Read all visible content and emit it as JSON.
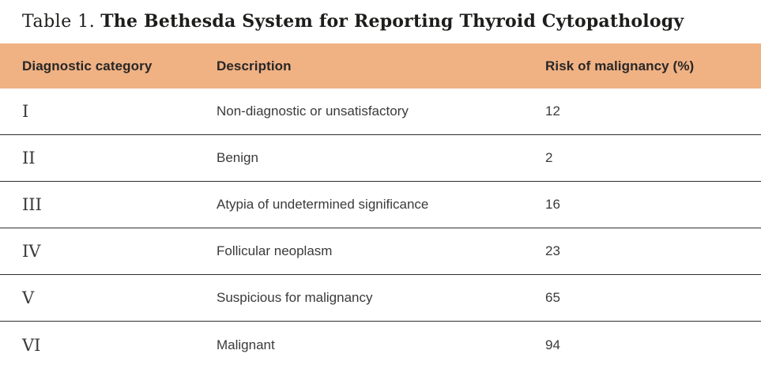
{
  "title": {
    "prefix": "Table 1.",
    "main": "The Bethesda System for Reporting Thyroid Cytopathology"
  },
  "table": {
    "headers": {
      "category": "Diagnostic category",
      "description": "Description",
      "risk": "Risk of malignancy (%)"
    },
    "rows": [
      {
        "category": "I",
        "description": "Non-diagnostic or unsatisfactory",
        "risk": "12"
      },
      {
        "category": "II",
        "description": "Benign",
        "risk": "2"
      },
      {
        "category": "III",
        "description": "Atypia of undetermined significance",
        "risk": "16"
      },
      {
        "category": "IV",
        "description": "Follicular neoplasm",
        "risk": "23"
      },
      {
        "category": "V",
        "description": "Suspicious for malignancy",
        "risk": "65"
      },
      {
        "category": "VI",
        "description": "Malignant",
        "risk": "94"
      }
    ]
  },
  "colors": {
    "header_bg": "#f0b183",
    "divider": "#2e2e2e",
    "title_text": "#1d1d1b",
    "header_text": "#272727",
    "body_text": "#3a3a3a"
  }
}
